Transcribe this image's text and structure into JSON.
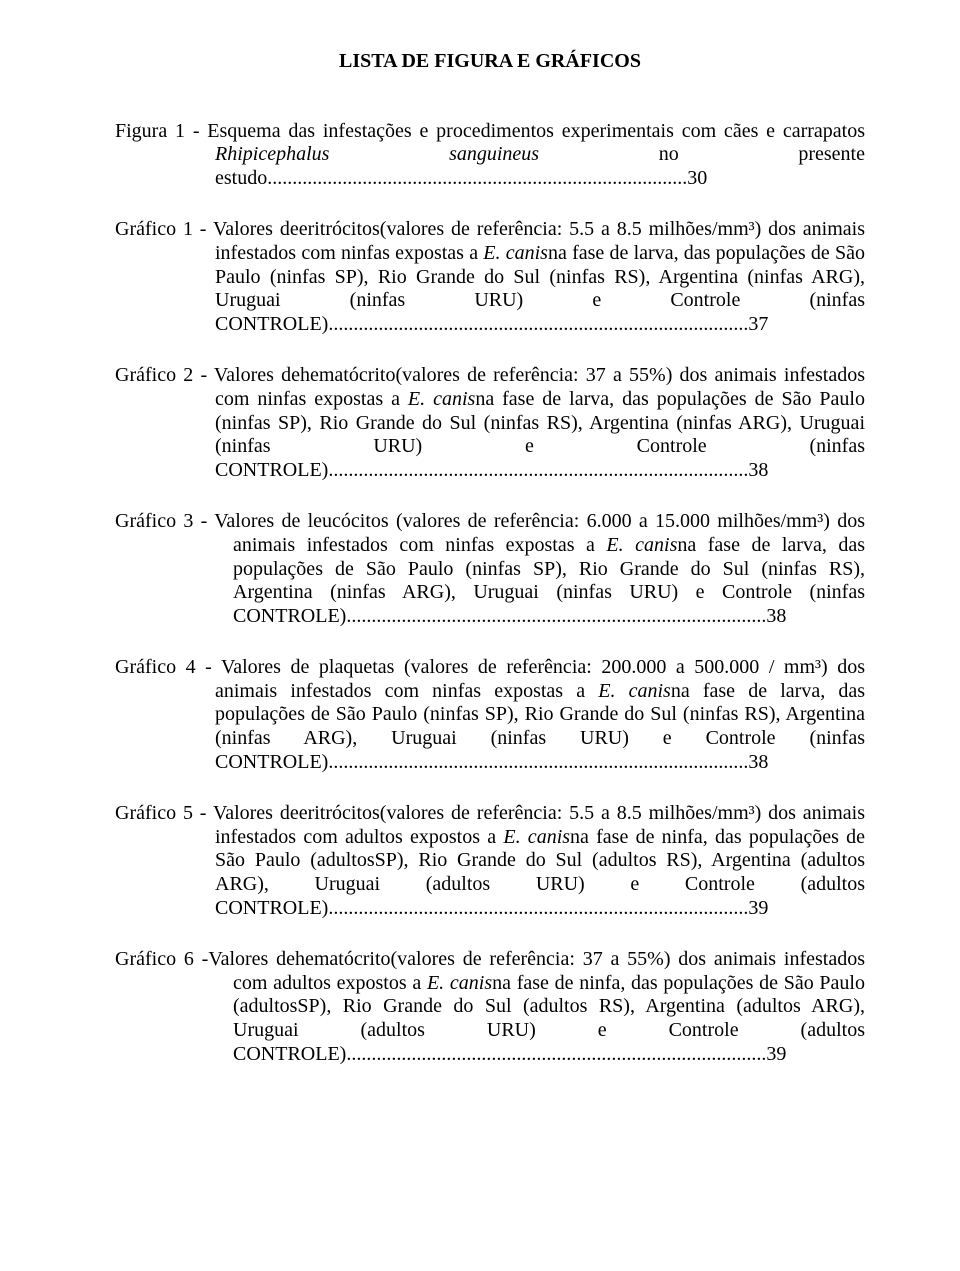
{
  "title": "LISTA DE FIGURA E GRÁFICOS",
  "entries": [
    {
      "lines": [
        "Figura 1 - Esquema das infestações e procedimentos experimentais com cães e carrapatos ",
        {
          "italic": "Rhipicephalus sanguineus"
        },
        " no presente estudo"
      ],
      "page": "30",
      "indentClass": "entry-inner"
    },
    {
      "lines": [
        "Gráfico 1 - Valores deeritrócitos(valores de referência: 5.5 a 8.5 milhões/mm³) dos animais infestados com ninfas expostas a ",
        {
          "italic": "E. canis"
        },
        "na fase de larva, das populações de São Paulo (ninfas SP), Rio Grande do Sul (ninfas RS), Argentina (ninfas ARG), Uruguai (ninfas URU) e Controle (ninfas CONTROLE)"
      ],
      "page": "37",
      "indentClass": "entry-inner"
    },
    {
      "lines": [
        "Gráfico 2 - Valores dehematócrito(valores de referência: 37 a 55%) dos animais infestados com ninfas expostas a ",
        {
          "italic": "E. canis"
        },
        "na fase de larva, das populações de São Paulo (ninfas SP), Rio Grande do Sul (ninfas RS), Argentina (ninfas ARG), Uruguai (ninfas URU) e Controle (ninfas CONTROLE)"
      ],
      "page": "38",
      "indentClass": "entry-inner"
    },
    {
      "lines": [
        "Gráfico 3 - Valores de leucócitos (valores de referência: 6.000 a 15.000 milhões/mm³) dos animais infestados com ninfas expostas a ",
        {
          "italic": "E. canis"
        },
        "na fase de larva, das populações de São Paulo (ninfas SP), Rio Grande do Sul (ninfas RS), Argentina (ninfas ARG), Uruguai (ninfas URU) e Controle (ninfas CONTROLE)"
      ],
      "page": "38",
      "indentClass": "entry-inner-wide"
    },
    {
      "lines": [
        "Gráfico 4 - Valores de plaquetas (valores de referência: 200.000  a 500.000 / mm³) dos animais infestados com ninfas expostas a ",
        {
          "italic": "E. canis"
        },
        "na fase de larva, das populações de São Paulo (ninfas SP), Rio Grande do Sul (ninfas RS), Argentina (ninfas ARG), Uruguai (ninfas URU) e Controle (ninfas CONTROLE)"
      ],
      "page": "38",
      "indentClass": "entry-inner"
    },
    {
      "lines": [
        "Gráfico 5 - Valores deeritrócitos(valores de referência: 5.5 a 8.5 milhões/mm³) dos animais infestados com adultos expostos a ",
        {
          "italic": "E. canis"
        },
        "na fase de ninfa, das populações de São Paulo (adultosSP), Rio Grande do Sul (adultos RS), Argentina (adultos ARG), Uruguai (adultos URU) e Controle (adultos CONTROLE)"
      ],
      "page": "39",
      "indentClass": "entry-inner"
    },
    {
      "lines": [
        "Gráfico 6 -Valores dehematócrito(valores de referência: 37 a 55%) dos animais infestados com adultos expostos a ",
        {
          "italic": "E. canis"
        },
        "na fase de ninfa, das populações de São Paulo (adultosSP), Rio Grande do Sul (adultos RS), Argentina (adultos ARG), Uruguai (adultos URU) e Controle (adultos CONTROLE)"
      ],
      "page": "39",
      "indentClass": "entry-inner-wide"
    }
  ]
}
